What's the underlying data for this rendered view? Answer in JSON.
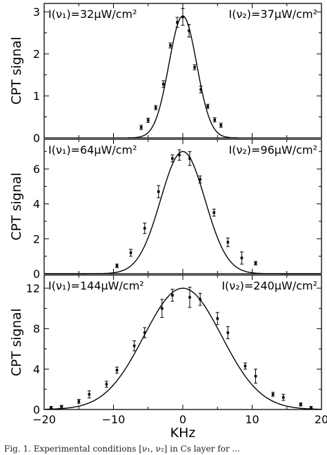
{
  "x_axis": {
    "label": "KHz",
    "ticks": [
      -20,
      -10,
      0,
      10,
      20
    ],
    "lim": [
      -20,
      20
    ]
  },
  "caption": "Fig. 1. Experimental conditions [ν₁, ν₂] in Cs layer for ...",
  "chart_data": [
    {
      "type": "scatter",
      "ylabel": "CPT signal",
      "xlabel": "",
      "annotation_left": "I(ν₁)=32μW/cm²",
      "annotation_right": "I(ν₂)=37μW/cm²",
      "xlim": [
        -20,
        20
      ],
      "ylim": [
        0,
        3.2
      ],
      "yticks": [
        0,
        1,
        2,
        3
      ],
      "fit": {
        "amplitude": 2.9,
        "sigma": 2.0,
        "x_range": [
          -8,
          8
        ]
      },
      "points": [
        {
          "x": -6.0,
          "y": 0.25,
          "err": 0.05
        },
        {
          "x": -5.0,
          "y": 0.42,
          "err": 0.05
        },
        {
          "x": -3.9,
          "y": 0.72,
          "err": 0.05
        },
        {
          "x": -2.8,
          "y": 1.28,
          "err": 0.08
        },
        {
          "x": -1.8,
          "y": 2.2,
          "err": 0.06
        },
        {
          "x": -0.8,
          "y": 2.75,
          "err": 0.12
        },
        {
          "x": 0.0,
          "y": 2.88,
          "err": 0.2
        },
        {
          "x": 0.9,
          "y": 2.55,
          "err": 0.15
        },
        {
          "x": 1.7,
          "y": 1.68,
          "err": 0.06
        },
        {
          "x": 2.6,
          "y": 1.15,
          "err": 0.08
        },
        {
          "x": 3.6,
          "y": 0.75,
          "err": 0.05
        },
        {
          "x": 4.6,
          "y": 0.43,
          "err": 0.05
        },
        {
          "x": 5.5,
          "y": 0.3,
          "err": 0.05
        }
      ]
    },
    {
      "type": "scatter",
      "ylabel": "CPT signal",
      "xlabel": "",
      "annotation_left": "I(ν₁)=64μW/cm²",
      "annotation_right": "I(ν₂)=96μW/cm²",
      "xlim": [
        -20,
        20
      ],
      "ylim": [
        0,
        7.7
      ],
      "yticks": [
        0,
        2,
        4,
        6
      ],
      "fit": {
        "amplitude": 7.0,
        "sigma": 3.2,
        "x_range": [
          -20,
          20
        ]
      },
      "points": [
        {
          "x": -9.5,
          "y": 0.45,
          "err": 0.1
        },
        {
          "x": -7.5,
          "y": 1.2,
          "err": 0.2
        },
        {
          "x": -5.5,
          "y": 2.6,
          "err": 0.3
        },
        {
          "x": -3.5,
          "y": 4.7,
          "err": 0.35
        },
        {
          "x": -1.5,
          "y": 6.6,
          "err": 0.2
        },
        {
          "x": -0.5,
          "y": 6.8,
          "err": 0.3
        },
        {
          "x": 1.0,
          "y": 6.6,
          "err": 0.4
        },
        {
          "x": 2.5,
          "y": 5.4,
          "err": 0.2
        },
        {
          "x": 4.5,
          "y": 3.5,
          "err": 0.2
        },
        {
          "x": 6.5,
          "y": 1.8,
          "err": 0.25
        },
        {
          "x": 8.5,
          "y": 0.9,
          "err": 0.35
        },
        {
          "x": 10.5,
          "y": 0.6,
          "err": 0.1
        }
      ]
    },
    {
      "type": "scatter",
      "ylabel": "CPT signal",
      "xlabel": "KHz",
      "annotation_left": "I(ν₁)=144μW/cm²",
      "annotation_right": "I(ν₂)=240μW/cm²",
      "xlim": [
        -20,
        20
      ],
      "ylim": [
        0,
        13.3
      ],
      "yticks": [
        0,
        4,
        8,
        12
      ],
      "fit": {
        "amplitude": 12.0,
        "sigma": 5.6,
        "x_range": [
          -20,
          20
        ]
      },
      "points": [
        {
          "x": -19.0,
          "y": 0.2,
          "err": 0.1
        },
        {
          "x": -17.5,
          "y": 0.3,
          "err": 0.1
        },
        {
          "x": -15.0,
          "y": 0.8,
          "err": 0.2
        },
        {
          "x": -13.5,
          "y": 1.5,
          "err": 0.35
        },
        {
          "x": -11.0,
          "y": 2.5,
          "err": 0.3
        },
        {
          "x": -9.5,
          "y": 3.9,
          "err": 0.3
        },
        {
          "x": -7.0,
          "y": 6.3,
          "err": 0.5
        },
        {
          "x": -5.5,
          "y": 7.6,
          "err": 0.5
        },
        {
          "x": -3.0,
          "y": 10.0,
          "err": 0.9
        },
        {
          "x": -1.5,
          "y": 11.3,
          "err": 0.6
        },
        {
          "x": 1.0,
          "y": 11.1,
          "err": 1.0
        },
        {
          "x": 2.5,
          "y": 10.9,
          "err": 0.6
        },
        {
          "x": 5.0,
          "y": 9.0,
          "err": 0.6
        },
        {
          "x": 6.5,
          "y": 7.6,
          "err": 0.6
        },
        {
          "x": 9.0,
          "y": 4.3,
          "err": 0.3
        },
        {
          "x": 10.5,
          "y": 3.3,
          "err": 0.7
        },
        {
          "x": 13.0,
          "y": 1.5,
          "err": 0.2
        },
        {
          "x": 14.5,
          "y": 1.2,
          "err": 0.3
        },
        {
          "x": 17.0,
          "y": 0.5,
          "err": 0.15
        },
        {
          "x": 18.5,
          "y": 0.2,
          "err": 0.1
        }
      ]
    }
  ]
}
